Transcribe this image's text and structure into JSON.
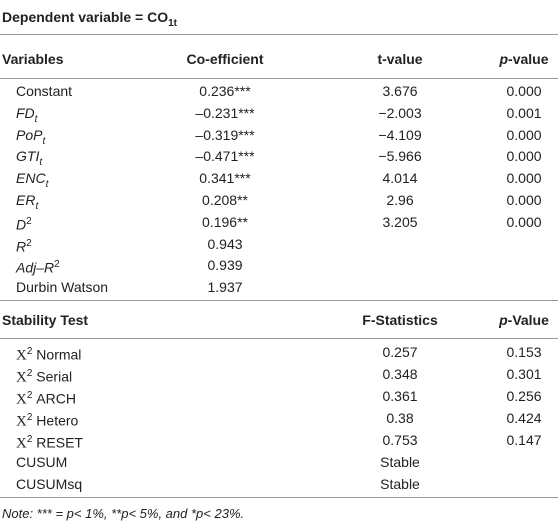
{
  "title": {
    "text": "Dependent variable = CO",
    "sub": "1t"
  },
  "table1": {
    "headers": [
      "Variables",
      "Co-efficient",
      "t-value",
      {
        "italic": "p",
        "text": "-value"
      }
    ],
    "rows": [
      [
        {
          "text": "Constant"
        },
        "0.236***",
        "3.676",
        "0.000"
      ],
      [
        {
          "text": "FD",
          "sub": "t",
          "italic": true
        },
        "–0.231***",
        "−2.003",
        "0.001"
      ],
      [
        {
          "text": "PoP",
          "sub": "t",
          "italic": true
        },
        "–0.319***",
        "−4.109",
        "0.000"
      ],
      [
        {
          "text": "GTI",
          "sub": "t",
          "italic": true
        },
        "–0.471***",
        "−5.966",
        "0.000"
      ],
      [
        {
          "text": "ENC",
          "sub": "t",
          "italic": true
        },
        "0.341***",
        "4.014",
        "0.000"
      ],
      [
        {
          "text": "ER",
          "sub": "t",
          "italic": true
        },
        "0.208**",
        "2.96",
        "0.000"
      ],
      [
        {
          "text": "D",
          "sup": "2",
          "italic": true
        },
        "0.196**",
        "3.205",
        "0.000"
      ],
      [
        {
          "text": "R",
          "sup": "2",
          "italic": true
        },
        "0.943"
      ],
      [
        {
          "text": "Adj–R",
          "sup": "2",
          "italic": true
        },
        "0.939"
      ],
      [
        {
          "text": "Durbin Watson"
        },
        "1.937"
      ]
    ]
  },
  "table2": {
    "headers": [
      "Stability Test",
      "F-Statistics",
      {
        "italic": "p",
        "text": "-Value"
      }
    ],
    "rows": [
      [
        {
          "sym": "X",
          "sup": "2",
          "text": "Normal"
        },
        "0.257",
        "0.153"
      ],
      [
        {
          "sym": "X",
          "sup": "2",
          "text": "Serial"
        },
        "0.348",
        "0.301"
      ],
      [
        {
          "sym": "X",
          "sup": "2",
          "text": "ARCH"
        },
        "0.361",
        "0.256"
      ],
      [
        {
          "sym": "X",
          "sup": "2",
          "text": "Hetero"
        },
        "0.38",
        "0.424"
      ],
      [
        {
          "sym": "X",
          "sup": "2",
          "text": "RESET"
        },
        "0.753",
        "0.147"
      ],
      [
        {
          "text": "CUSUM"
        },
        "Stable"
      ],
      [
        {
          "text": "CUSUMsq"
        },
        "Stable"
      ]
    ]
  },
  "note": "Note: *** = p< 1%, **p< 5%, and *p< 23%."
}
